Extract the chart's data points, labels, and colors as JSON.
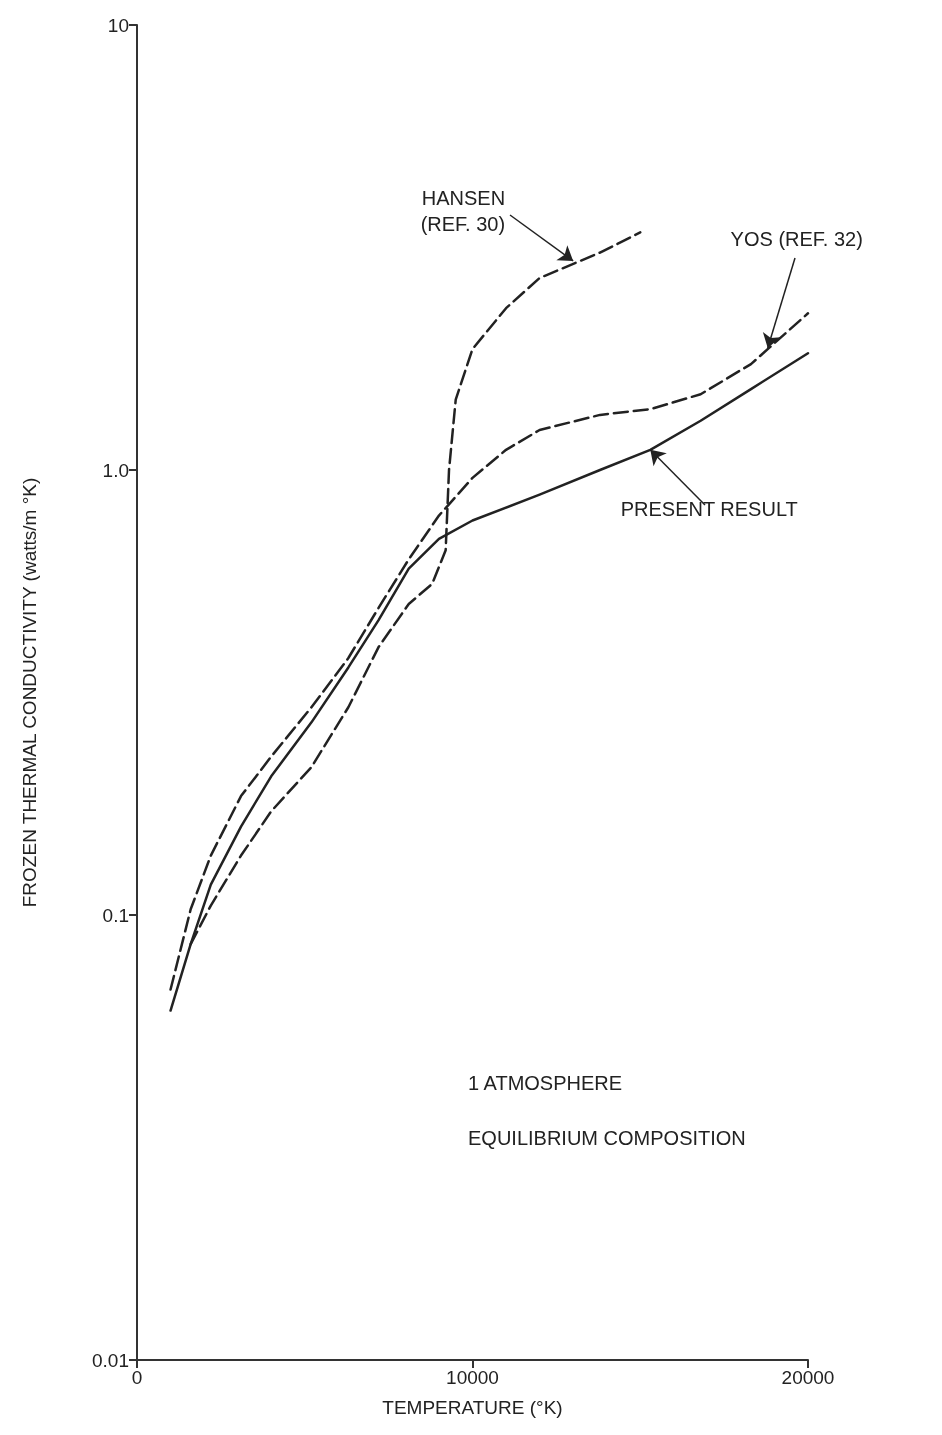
{
  "chart_data": {
    "type": "line",
    "xlabel": "TEMPERATURE (°K)",
    "ylabel": "FROZEN THERMAL CONDUCTIVITY (watts/m °K)",
    "xlim": [
      0,
      20000
    ],
    "xticks": [
      0,
      10000,
      20000
    ],
    "ylim": [
      0.01,
      10
    ],
    "yticks": [
      {
        "value": 0.01,
        "label": "0.01"
      },
      {
        "value": 0.1,
        "label": "0.1"
      },
      {
        "value": 1,
        "label": "1.0"
      },
      10
    ],
    "log": "y",
    "grid": false,
    "marker": "none",
    "series": [
      {
        "color": "#222222",
        "line_style": "solid",
        "x": [
          1000,
          1600,
          2200,
          3100,
          4000,
          5200,
          6300,
          7200,
          8100,
          9000,
          10000,
          12000,
          13800,
          15300,
          16800,
          18300,
          20000
        ],
        "values": [
          0.061,
          0.086,
          0.117,
          0.158,
          0.205,
          0.271,
          0.36,
          0.46,
          0.6,
          0.7,
          0.77,
          0.88,
          1.0,
          1.11,
          1.29,
          1.52,
          1.83
        ]
      },
      {
        "color": "#222222",
        "line_style": "dashed",
        "x": [
          1000,
          1600,
          2200,
          3100,
          4000,
          5200,
          6300,
          7200,
          8100,
          9000,
          10000,
          11000,
          12000,
          13800,
          15300,
          16800,
          18300,
          20000
        ],
        "values": [
          0.068,
          0.103,
          0.136,
          0.185,
          0.227,
          0.293,
          0.378,
          0.49,
          0.63,
          0.79,
          0.96,
          1.11,
          1.23,
          1.33,
          1.37,
          1.48,
          1.73,
          2.25
        ]
      },
      {
        "color": "#222222",
        "line_style": "dashed",
        "x": [
          1600,
          2200,
          3100,
          4000,
          5200,
          6300,
          7200,
          8100,
          8800,
          9200,
          9300,
          9500,
          10000,
          11000,
          12000,
          13800,
          15000
        ],
        "values": [
          0.086,
          0.105,
          0.136,
          0.171,
          0.215,
          0.293,
          0.4,
          0.5,
          0.555,
          0.66,
          1.0,
          1.44,
          1.87,
          2.31,
          2.7,
          3.08,
          3.42
        ]
      }
    ],
    "annotations": [
      {
        "text": "PRESENT RESULT",
        "x": 15300,
        "y": 1.11
      },
      {
        "text": "YOS (REF. 32)",
        "x": 18800,
        "y": 1.88
      },
      {
        "text": "HANSEN\n(REF. 30)",
        "x": 13000,
        "y": 2.95
      },
      "1 ATMOSPHERE",
      "EQUILIBRIUM COMPOSITION"
    ]
  }
}
